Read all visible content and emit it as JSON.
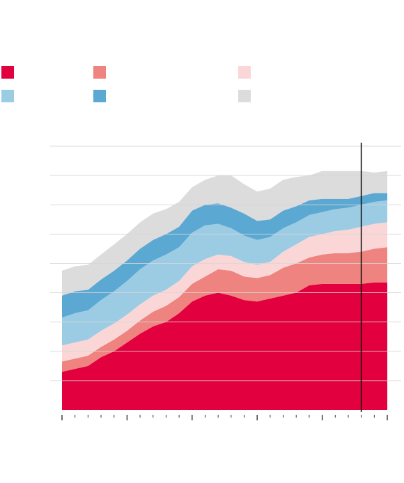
{
  "chart_data": {
    "type": "area",
    "stacked": true,
    "title": "",
    "xlabel": "",
    "ylabel": "",
    "x": [
      0,
      1,
      2,
      3,
      4,
      5,
      6,
      7,
      8,
      9,
      10,
      11,
      12,
      13,
      14,
      15,
      16,
      17,
      18,
      19,
      20,
      21,
      22,
      23,
      24,
      25
    ],
    "ylim": [
      0,
      9
    ],
    "grid": true,
    "legend": "top",
    "forecast_marker_x": 23,
    "series": [
      {
        "color": "#e3003f",
        "values": [
          1.3,
          1.4,
          1.5,
          1.8,
          2.0,
          2.3,
          2.6,
          2.85,
          3.0,
          3.3,
          3.7,
          3.9,
          4.0,
          3.9,
          3.75,
          3.7,
          3.8,
          3.9,
          4.0,
          4.25,
          4.3,
          4.3,
          4.3,
          4.3,
          4.35,
          4.35
        ]
      },
      {
        "color": "#ee8380",
        "values": [
          0.35,
          0.35,
          0.35,
          0.35,
          0.4,
          0.4,
          0.45,
          0.5,
          0.55,
          0.55,
          0.6,
          0.65,
          0.8,
          0.85,
          0.8,
          0.8,
          0.8,
          0.95,
          1.0,
          0.95,
          1.0,
          1.05,
          1.05,
          1.1,
          1.15,
          1.2
        ]
      },
      {
        "color": "#fad7d6",
        "values": [
          0.55,
          0.55,
          0.55,
          0.55,
          0.55,
          0.55,
          0.55,
          0.55,
          0.55,
          0.55,
          0.6,
          0.6,
          0.5,
          0.5,
          0.5,
          0.45,
          0.45,
          0.55,
          0.65,
          0.7,
          0.7,
          0.75,
          0.8,
          0.85,
          0.85,
          0.85
        ]
      },
      {
        "color": "#9ccce4",
        "values": [
          0.95,
          1.0,
          1.0,
          1.05,
          1.1,
          1.15,
          1.2,
          1.2,
          1.2,
          1.15,
          1.15,
          1.15,
          1.05,
          0.95,
          0.9,
          0.85,
          0.85,
          0.8,
          0.75,
          0.75,
          0.75,
          0.75,
          0.75,
          0.75,
          0.75,
          0.75
        ]
      },
      {
        "color": "#5ba8d3",
        "values": [
          0.75,
          0.75,
          0.7,
          0.7,
          0.7,
          0.7,
          0.7,
          0.7,
          0.7,
          0.7,
          0.75,
          0.7,
          0.7,
          0.7,
          0.75,
          0.65,
          0.6,
          0.6,
          0.55,
          0.5,
          0.45,
          0.35,
          0.3,
          0.3,
          0.3,
          0.25
        ]
      },
      {
        "color": "#dcdcdc",
        "values": [
          0.85,
          0.85,
          0.85,
          0.85,
          0.9,
          0.9,
          0.9,
          0.9,
          0.85,
          0.85,
          0.8,
          0.85,
          0.95,
          1.1,
          1.0,
          1.0,
          1.05,
          1.05,
          1.0,
          0.85,
          0.95,
          0.95,
          0.95,
          0.85,
          0.7,
          0.75
        ]
      }
    ]
  },
  "legend": {
    "items": [
      {
        "label": "",
        "color": "#e3003f"
      },
      {
        "label": "",
        "color": "#ee8380"
      },
      {
        "label": "",
        "color": "#fad7d6"
      },
      {
        "label": "",
        "color": "#9ccce4"
      },
      {
        "label": "",
        "color": "#5ba8d3"
      },
      {
        "label": "",
        "color": "#dcdcdc"
      }
    ]
  },
  "colors": {
    "grid": "#d6d6d6",
    "axis": "#333333",
    "marker": "#111111"
  }
}
